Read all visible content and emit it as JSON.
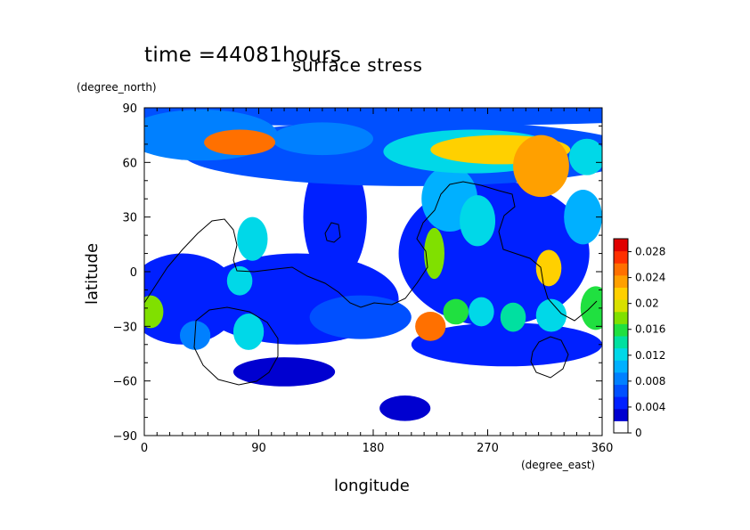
{
  "chart_data": {
    "type": "heatmap",
    "time_label": "time =44081hours",
    "title": "surface stress",
    "xlabel": "longitude",
    "ylabel": "latitude",
    "x_unit": "(degree_east)",
    "y_unit": "(degree_north)",
    "xlim": [
      0,
      360
    ],
    "ylim": [
      -90,
      90
    ],
    "x_ticks": [
      "0",
      "90",
      "180",
      "270",
      "360"
    ],
    "y_ticks": [
      "90",
      "60",
      "30",
      "0",
      "−30",
      "−60",
      "−90"
    ],
    "colorbar": {
      "range": [
        0,
        0.03
      ],
      "tick_labels": [
        "0.028",
        "0.024",
        "0.02",
        "0.016",
        "0.012",
        "0.008",
        "0.004",
        "0"
      ],
      "tick_values": [
        0.028,
        0.024,
        0.02,
        0.016,
        0.012,
        0.008,
        0.004,
        0
      ],
      "colors": [
        "#ffffff",
        "#0000d0",
        "#0020ff",
        "#0050ff",
        "#0080ff",
        "#00b0ff",
        "#00d8e8",
        "#00e0a0",
        "#20e040",
        "#80e000",
        "#d8e000",
        "#ffd000",
        "#ffa000",
        "#ff7000",
        "#ff3000",
        "#e00000"
      ]
    },
    "blobs": [
      {
        "lon": 190,
        "lat": 86,
        "rx": 250,
        "ry": 6,
        "v": 0.006
      },
      {
        "lon": 210,
        "lat": 65,
        "rx": 180,
        "ry": 18,
        "v": 0.006
      },
      {
        "lon": 45,
        "lat": 75,
        "rx": 60,
        "ry": 14,
        "v": 0.008
      },
      {
        "lon": 75,
        "lat": 71,
        "rx": 28,
        "ry": 7,
        "v": 0.026
      },
      {
        "lon": 140,
        "lat": 73,
        "rx": 40,
        "ry": 9,
        "v": 0.009
      },
      {
        "lon": 258,
        "lat": 66,
        "rx": 70,
        "ry": 12,
        "v": 0.012
      },
      {
        "lon": 280,
        "lat": 67,
        "rx": 55,
        "ry": 8,
        "v": 0.022
      },
      {
        "lon": 312,
        "lat": 58,
        "rx": 22,
        "ry": 17,
        "v": 0.024
      },
      {
        "lon": 348,
        "lat": 63,
        "rx": 14,
        "ry": 10,
        "v": 0.012
      },
      {
        "lon": 275,
        "lat": 10,
        "rx": 75,
        "ry": 40,
        "v": 0.005
      },
      {
        "lon": 240,
        "lat": 40,
        "rx": 22,
        "ry": 18,
        "v": 0.011
      },
      {
        "lon": 262,
        "lat": 28,
        "rx": 14,
        "ry": 14,
        "v": 0.013
      },
      {
        "lon": 318,
        "lat": 2,
        "rx": 10,
        "ry": 10,
        "v": 0.022
      },
      {
        "lon": 228,
        "lat": 10,
        "rx": 8,
        "ry": 14,
        "v": 0.018
      },
      {
        "lon": 345,
        "lat": 30,
        "rx": 15,
        "ry": 15,
        "v": 0.01
      },
      {
        "lon": 85,
        "lat": 18,
        "rx": 12,
        "ry": 12,
        "v": 0.012
      },
      {
        "lon": 150,
        "lat": 30,
        "rx": 25,
        "ry": 35,
        "v": 0.004
      },
      {
        "lon": 120,
        "lat": -15,
        "rx": 80,
        "ry": 25,
        "v": 0.004
      },
      {
        "lon": 30,
        "lat": -15,
        "rx": 45,
        "ry": 25,
        "v": 0.004
      },
      {
        "lon": 5,
        "lat": -22,
        "rx": 10,
        "ry": 9,
        "v": 0.018
      },
      {
        "lon": 75,
        "lat": -5,
        "rx": 10,
        "ry": 8,
        "v": 0.012
      },
      {
        "lon": 82,
        "lat": -33,
        "rx": 12,
        "ry": 10,
        "v": 0.013
      },
      {
        "lon": 40,
        "lat": -35,
        "rx": 12,
        "ry": 8,
        "v": 0.008
      },
      {
        "lon": 285,
        "lat": -40,
        "rx": 75,
        "ry": 12,
        "v": 0.004
      },
      {
        "lon": 225,
        "lat": -30,
        "rx": 12,
        "ry": 8,
        "v": 0.025
      },
      {
        "lon": 245,
        "lat": -22,
        "rx": 10,
        "ry": 7,
        "v": 0.015
      },
      {
        "lon": 265,
        "lat": -22,
        "rx": 10,
        "ry": 8,
        "v": 0.013
      },
      {
        "lon": 290,
        "lat": -25,
        "rx": 10,
        "ry": 8,
        "v": 0.014
      },
      {
        "lon": 320,
        "lat": -24,
        "rx": 12,
        "ry": 9,
        "v": 0.013
      },
      {
        "lon": 355,
        "lat": -20,
        "rx": 12,
        "ry": 12,
        "v": 0.016
      },
      {
        "lon": 170,
        "lat": -25,
        "rx": 40,
        "ry": 12,
        "v": 0.006
      },
      {
        "lon": 205,
        "lat": -75,
        "rx": 20,
        "ry": 7,
        "v": 0.003
      },
      {
        "lon": 110,
        "lat": -55,
        "rx": 40,
        "ry": 8,
        "v": 0.003
      }
    ]
  }
}
